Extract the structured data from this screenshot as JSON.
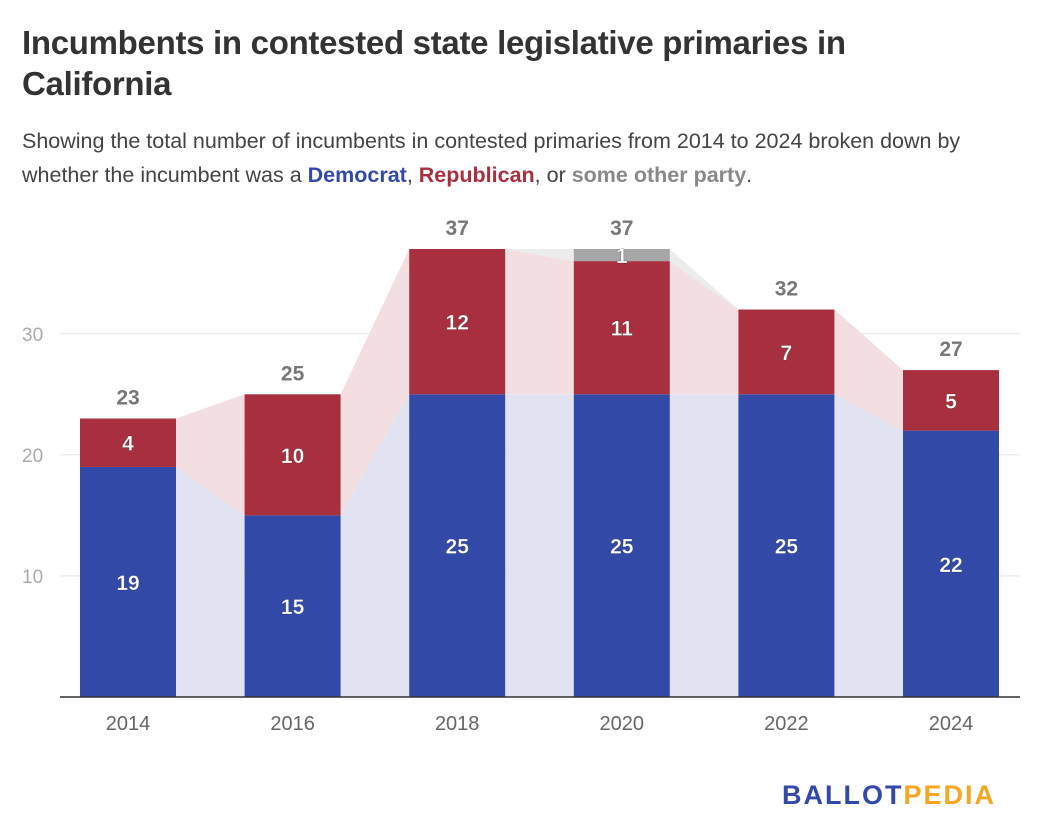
{
  "title": "Incumbents in contested state legislative primaries in California",
  "subtitle": {
    "before": "Showing the total number of incumbents in contested primaries from 2014 to 2024 broken down by whether the incumbent was a ",
    "democrat": "Democrat",
    "sep1": ", ",
    "republican": "Republican",
    "sep2": ", or ",
    "other": "some other party",
    "end": "."
  },
  "logo": {
    "part1": "BALLOT",
    "part2": "PEDIA"
  },
  "colors": {
    "democrat": "#3349a8",
    "republican": "#a8303e",
    "other": "#a6a6a6",
    "logo_blue": "#3349a8",
    "logo_orange": "#f5a623"
  },
  "chart_data": {
    "type": "bar",
    "stacked": true,
    "categories": [
      "2014",
      "2016",
      "2018",
      "2020",
      "2022",
      "2024"
    ],
    "series": [
      {
        "name": "Democrat",
        "color": "#3349a8",
        "values": [
          19,
          15,
          25,
          25,
          25,
          22
        ]
      },
      {
        "name": "Republican",
        "color": "#a8303e",
        "values": [
          4,
          10,
          12,
          11,
          7,
          5
        ]
      },
      {
        "name": "some other party",
        "color": "#a6a6a6",
        "values": [
          0,
          0,
          0,
          1,
          0,
          0
        ]
      }
    ],
    "totals": [
      23,
      25,
      37,
      37,
      32,
      27
    ],
    "yticks": [
      10,
      20,
      30
    ],
    "ylim": [
      0,
      37
    ],
    "grid": true,
    "connector_areas": true
  }
}
